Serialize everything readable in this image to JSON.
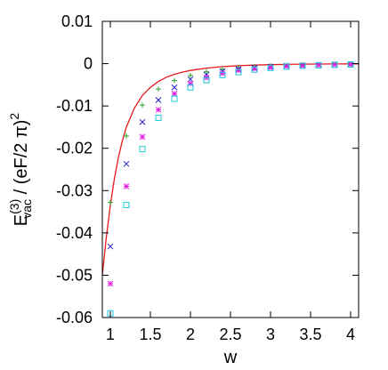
{
  "chart_data": {
    "type": "scatter",
    "xlabel": "w",
    "ylabel": {
      "main": "E",
      "superscript": "(3)",
      "subscript": "vac",
      "rest": " / (eF/2 π)",
      "rest_superscript": "2"
    },
    "xlim": [
      0.9,
      4.1
    ],
    "ylim": [
      -0.06,
      0.01
    ],
    "xticks": [
      1,
      1.5,
      2,
      2.5,
      3,
      3.5,
      4
    ],
    "xtick_labels": [
      "1",
      "1.5",
      "2",
      "2.5",
      "3",
      "3.5",
      "4"
    ],
    "yticks": [
      0.01,
      0,
      -0.01,
      -0.02,
      -0.03,
      -0.04,
      -0.05,
      -0.06
    ],
    "ytick_labels": [
      "0.01",
      "0",
      "-0.01",
      "-0.02",
      "-0.03",
      "-0.04",
      "-0.05",
      "-0.06"
    ],
    "grid": false,
    "legend": "none",
    "curve": {
      "color": "#e8191c",
      "x": [
        0.9,
        0.95,
        1.0,
        1.05,
        1.1,
        1.15,
        1.2,
        1.3,
        1.4,
        1.5,
        1.6,
        1.7,
        1.8,
        1.9,
        2.0,
        2.2,
        2.4,
        2.6,
        2.8,
        3.0,
        3.2,
        3.4,
        3.6,
        3.8,
        4.0,
        4.1
      ],
      "y": [
        -0.05,
        -0.041,
        -0.0335,
        -0.0272,
        -0.0222,
        -0.0182,
        -0.015,
        -0.0105,
        -0.0075,
        -0.0056,
        -0.0042,
        -0.0032,
        -0.0025,
        -0.002,
        -0.0016,
        -0.00105,
        -0.0007,
        -0.00048,
        -0.00034,
        -0.00024,
        -0.00017,
        -0.00012,
        -9e-05,
        -6e-05,
        -4e-05,
        -3e-05
      ]
    },
    "series": [
      {
        "marker": "plus",
        "color": "#2ea62e",
        "x": [
          1.0,
          1.2,
          1.4,
          1.6,
          1.8,
          2.0,
          2.2,
          2.4,
          2.6,
          2.8,
          3.0,
          3.2,
          3.4,
          3.6,
          3.8,
          4.0
        ],
        "y": [
          -0.0328,
          -0.0171,
          -0.0098,
          -0.006,
          -0.004,
          -0.0028,
          -0.0019,
          -0.0013,
          -0.0009,
          -0.0007,
          -0.0005,
          -0.0004,
          -0.0003,
          -0.0002,
          -0.0001,
          -0.0001
        ]
      },
      {
        "marker": "x",
        "color": "#1f1fc8",
        "x": [
          1.0,
          1.2,
          1.4,
          1.6,
          1.8,
          2.0,
          2.2,
          2.4,
          2.6,
          2.8,
          3.0,
          3.2,
          3.4,
          3.6,
          3.8,
          4.0
        ],
        "y": [
          -0.0432,
          -0.0237,
          -0.0138,
          -0.0086,
          -0.0056,
          -0.0037,
          -0.0026,
          -0.0018,
          -0.0013,
          -0.0009,
          -0.0007,
          -0.0005,
          -0.0004,
          -0.0003,
          -0.0002,
          -0.0001
        ]
      },
      {
        "marker": "star",
        "color": "#e020e0",
        "x": [
          1.0,
          1.2,
          1.4,
          1.6,
          1.8,
          2.0,
          2.2,
          2.4,
          2.6,
          2.8,
          3.0,
          3.2,
          3.4,
          3.6,
          3.8,
          4.0
        ],
        "y": [
          -0.052,
          -0.029,
          -0.0173,
          -0.0109,
          -0.0071,
          -0.0047,
          -0.0033,
          -0.0023,
          -0.0016,
          -0.0012,
          -0.0009,
          -0.0006,
          -0.0005,
          -0.0003,
          -0.0002,
          -0.0002
        ]
      },
      {
        "marker": "square",
        "color": "#1ec8d8",
        "x": [
          1.0,
          1.2,
          1.4,
          1.6,
          1.8,
          2.0,
          2.2,
          2.4,
          2.6,
          2.8,
          3.0,
          3.2,
          3.4,
          3.6,
          3.8,
          4.0
        ],
        "y": [
          -0.059,
          -0.0334,
          -0.0202,
          -0.0128,
          -0.0083,
          -0.0056,
          -0.0039,
          -0.0027,
          -0.002,
          -0.0014,
          -0.001,
          -0.0007,
          -0.0005,
          -0.0004,
          -0.0003,
          -0.0002
        ]
      }
    ]
  }
}
